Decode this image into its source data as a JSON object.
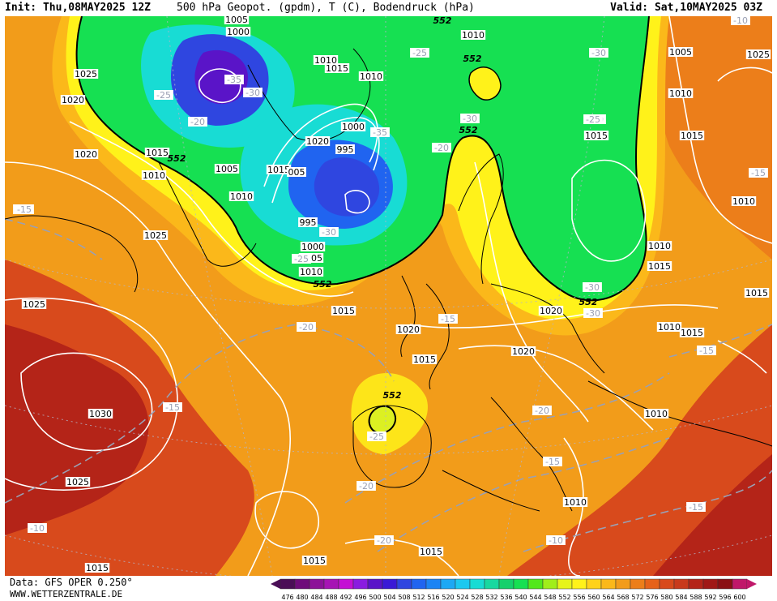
{
  "header": {
    "init_label": "Init: Thu,08MAY2025 12Z",
    "title": "500 hPa Geopot. (gpdm), T (C), Bodendruck (hPa)",
    "valid_label": "Valid: Sat,10MAY2025 03Z"
  },
  "footer": {
    "data_source": "Data: GFS OPER 0.250°",
    "website": "WWW.WETTERZENTRALE.DE"
  },
  "colors": {
    "green_552": "#16e052",
    "orange": "#f29c1a",
    "red": "#d84a1c",
    "deep_red": "#b42418",
    "yellow": "#fff21a",
    "blue_low": "#2f46e0",
    "purple_low": "#5a14c8",
    "isobar": "#ffffff",
    "contour_552": "#000000"
  },
  "legend": {
    "values": [
      "476",
      "480",
      "484",
      "488",
      "492",
      "496",
      "500",
      "504",
      "508",
      "512",
      "516",
      "520",
      "524",
      "528",
      "532",
      "536",
      "540",
      "544",
      "548",
      "552",
      "556",
      "560",
      "564",
      "568",
      "572",
      "576",
      "580",
      "584",
      "588",
      "592",
      "596",
      "600"
    ],
    "colors": [
      "#4a0e56",
      "#6e0c7a",
      "#8c1298",
      "#a614b4",
      "#c410d4",
      "#8a1ce0",
      "#5a14c8",
      "#3a1ad6",
      "#2f46e0",
      "#2064f0",
      "#1c84f4",
      "#1ca8f4",
      "#1cc8f0",
      "#18dcd4",
      "#18d8a0",
      "#16d06c",
      "#16e052",
      "#52e81c",
      "#a0ee1a",
      "#e6f41a",
      "#fff21a",
      "#ffd21a",
      "#fbb81a",
      "#f29c1a",
      "#ec7e1a",
      "#e6621a",
      "#d84a1c",
      "#c83a1c",
      "#b42418",
      "#a01816",
      "#8a1014",
      "#c0186a"
    ]
  },
  "isobar_labels": [
    "1005",
    "1000",
    "1010",
    "1015",
    "1010",
    "1025",
    "1025",
    "1020",
    "1020",
    "1015",
    "1010",
    "1005",
    "1010",
    "1020",
    "1000",
    "995",
    "1015",
    "005",
    "995",
    "1000",
    "1005",
    "1010",
    "1025",
    "1015",
    "1025",
    "1030",
    "1025",
    "1020",
    "1020",
    "1015",
    "1020",
    "1015",
    "1010",
    "1015",
    "1015",
    "1015",
    "1010",
    "1005",
    "1010",
    "1015",
    "1010",
    "1010",
    "1010",
    "1015",
    "1015",
    "1015",
    "1010",
    "1015",
    "1020"
  ],
  "temperature_labels": [
    "-35",
    "-30",
    "-25",
    "-20",
    "-25",
    "-30",
    "-35",
    "-30",
    "-25",
    "-30",
    "-30",
    "-30",
    "-20",
    "-20",
    "-15",
    "-15",
    "-20",
    "-25",
    "-30",
    "-25",
    "-15",
    "-20",
    "-15",
    "-20",
    "-15",
    "-10",
    "-10",
    "-15",
    "-15",
    "-15",
    "-10"
  ],
  "gpdm_labels": [
    "552",
    "552",
    "552",
    "552",
    "552",
    "552",
    "552"
  ]
}
